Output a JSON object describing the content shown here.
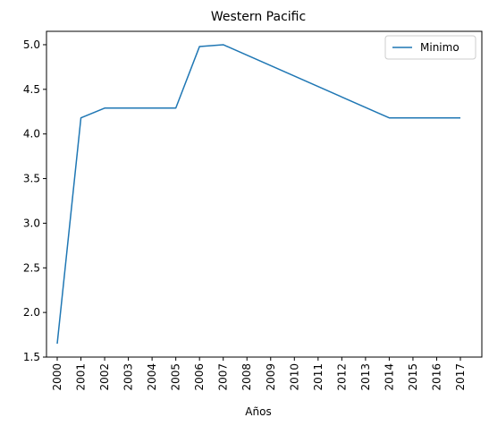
{
  "chart_data": {
    "type": "line",
    "title": "Western Pacific",
    "xlabel": "Años",
    "ylabel": "",
    "x": [
      "2000",
      "2001",
      "2002",
      "2003",
      "2004",
      "2005",
      "2006",
      "2007",
      "2008",
      "2009",
      "2010",
      "2011",
      "2012",
      "2013",
      "2014",
      "2015",
      "2016",
      "2017"
    ],
    "series": [
      {
        "name": "Minimo",
        "color": "#1f77b4",
        "points": [
          {
            "x": "2000",
            "y": 1.65
          },
          {
            "x": "2001",
            "y": 4.18
          },
          {
            "x": "2002",
            "y": 4.29
          },
          {
            "x": "2003",
            "y": 4.29
          },
          {
            "x": "2004",
            "y": 4.29
          },
          {
            "x": "2005",
            "y": 4.29
          },
          {
            "x": "2006",
            "y": 4.98
          },
          {
            "x": "2007",
            "y": 5.0
          },
          {
            "x": "2014",
            "y": 4.18
          },
          {
            "x": "2015",
            "y": 4.18
          },
          {
            "x": "2016",
            "y": 4.18
          },
          {
            "x": "2017",
            "y": 4.18
          }
        ]
      }
    ],
    "ylim": [
      1.5,
      5.15
    ],
    "yticks": [
      "1.5",
      "2.0",
      "2.5",
      "3.0",
      "3.5",
      "4.0",
      "4.5",
      "5.0"
    ],
    "grid": false,
    "legend_position": "top-right"
  }
}
